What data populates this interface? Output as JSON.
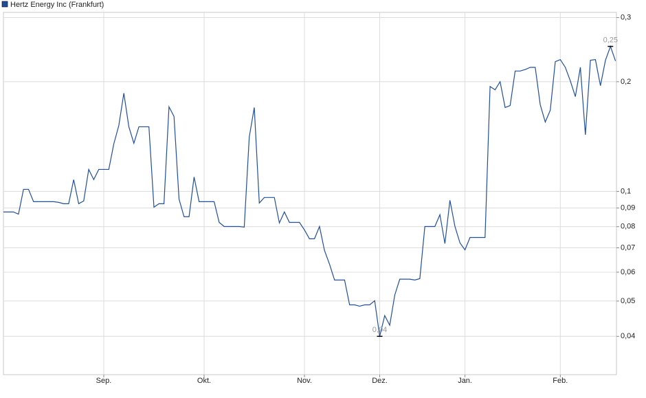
{
  "chart_data": {
    "type": "line",
    "log_y": true,
    "grid": true,
    "series": [
      {
        "name": "Hertz Energy Inc (Frankfurt)",
        "color": "#1f4e9c",
        "values": [
          0.0878,
          0.0878,
          0.0878,
          0.0866,
          0.1013,
          0.1013,
          0.0937,
          0.0937,
          0.0937,
          0.0937,
          0.0937,
          0.0933,
          0.0925,
          0.0925,
          0.1077,
          0.0925,
          0.0941,
          0.1149,
          0.1077,
          0.1149,
          0.1149,
          0.1149,
          0.135,
          0.1517,
          0.186,
          0.1504,
          0.1355,
          0.1504,
          0.1504,
          0.1504,
          0.0905,
          0.0925,
          0.0925,
          0.1707,
          0.1606,
          0.0953,
          0.0852,
          0.0852,
          0.1095,
          0.0937,
          0.0937,
          0.0937,
          0.0937,
          0.0822,
          0.0801,
          0.0801,
          0.0801,
          0.0801,
          0.0798,
          0.141,
          0.1699,
          0.0929,
          0.0962,
          0.0962,
          0.0962,
          0.0819,
          0.0878,
          0.0822,
          0.0822,
          0.0822,
          0.0784,
          0.0741,
          0.0741,
          0.0801,
          0.0688,
          0.0631,
          0.0571,
          0.0571,
          0.0571,
          0.0488,
          0.0488,
          0.0484,
          0.0488,
          0.0488,
          0.0501,
          0.04,
          0.0456,
          0.0429,
          0.0519,
          0.0574,
          0.0574,
          0.0574,
          0.0571,
          0.0576,
          0.0801,
          0.0801,
          0.0801,
          0.0863,
          0.0719,
          0.0945,
          0.0801,
          0.0722,
          0.0691,
          0.0747,
          0.0747,
          0.0747,
          0.0747,
          0.194,
          0.19,
          0.2,
          0.1699,
          0.172,
          0.214,
          0.214,
          0.216,
          0.219,
          0.219,
          0.173,
          0.155,
          0.167,
          0.227,
          0.23,
          0.219,
          0.201,
          0.182,
          0.219,
          0.143,
          0.229,
          0.23,
          0.195,
          0.229,
          0.25,
          0.228
        ],
        "value_labels": [
          null,
          null,
          null,
          null,
          null,
          null,
          null,
          null,
          null,
          null,
          null,
          null,
          null,
          null,
          null,
          null,
          null,
          null,
          null,
          null,
          null,
          null,
          null,
          null,
          null,
          null,
          null,
          null,
          null,
          null,
          null,
          null,
          null,
          null,
          null,
          null,
          null,
          null,
          null,
          null,
          null,
          null,
          null,
          null,
          null,
          null,
          null,
          null,
          null,
          null,
          null,
          null,
          null,
          null,
          null,
          null,
          null,
          null,
          null,
          null,
          null,
          null,
          null,
          null,
          null,
          null,
          null,
          null,
          null,
          null,
          null,
          null,
          null,
          null,
          null,
          "0,04",
          null,
          null,
          null,
          null,
          null,
          null,
          null,
          null,
          null,
          null,
          null,
          null,
          null,
          null,
          null,
          null,
          null,
          null,
          null,
          null,
          null,
          null,
          null,
          null,
          null,
          null,
          null,
          null,
          null,
          null,
          null,
          null,
          null,
          null,
          null,
          null,
          null,
          null,
          null,
          null,
          null,
          null,
          null,
          null,
          null,
          "0,25",
          null
        ]
      }
    ],
    "categories": [
      null,
      null,
      null,
      null,
      null,
      null,
      null,
      null,
      null,
      null,
      null,
      null,
      null,
      null,
      null,
      null,
      null,
      null,
      null,
      null,
      "Sep.",
      null,
      null,
      null,
      null,
      null,
      null,
      null,
      null,
      null,
      null,
      null,
      null,
      null,
      null,
      null,
      null,
      null,
      null,
      null,
      "Okt.",
      null,
      null,
      null,
      null,
      null,
      null,
      null,
      null,
      null,
      null,
      null,
      null,
      null,
      null,
      null,
      null,
      null,
      null,
      null,
      "Nov.",
      null,
      null,
      null,
      null,
      null,
      null,
      null,
      null,
      null,
      null,
      null,
      null,
      null,
      null,
      "Dez.",
      null,
      null,
      null,
      null,
      null,
      null,
      null,
      null,
      null,
      null,
      null,
      null,
      null,
      null,
      null,
      null,
      "Jan.",
      null,
      null,
      null,
      null,
      null,
      null,
      null,
      null,
      null,
      null,
      null,
      null,
      null,
      null,
      null,
      null,
      null,
      null,
      "Feb.",
      null,
      null,
      null,
      null,
      null,
      null,
      null,
      null,
      null,
      null,
      null
    ],
    "ylim": [
      0.0314,
      0.31
    ],
    "yticks": [
      {
        "value": 0.04,
        "label": "0,04"
      },
      {
        "value": 0.05,
        "label": "0,05"
      },
      {
        "value": 0.06,
        "label": "0,06"
      },
      {
        "value": 0.07,
        "label": "0,07"
      },
      {
        "value": 0.08,
        "label": "0,08"
      },
      {
        "value": 0.09,
        "label": "0,09"
      },
      {
        "value": 0.1,
        "label": "0,1"
      },
      {
        "value": 0.2,
        "label": "0,2"
      },
      {
        "value": 0.3,
        "label": "0,3"
      }
    ]
  }
}
